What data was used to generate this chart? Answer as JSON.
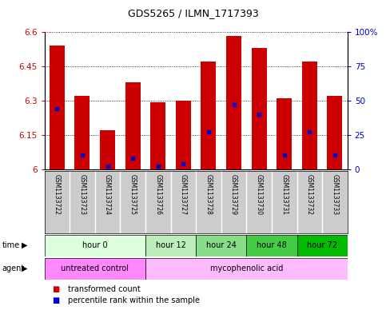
{
  "title": "GDS5265 / ILMN_1717393",
  "samples": [
    "GSM1133722",
    "GSM1133723",
    "GSM1133724",
    "GSM1133725",
    "GSM1133726",
    "GSM1133727",
    "GSM1133728",
    "GSM1133729",
    "GSM1133730",
    "GSM1133731",
    "GSM1133732",
    "GSM1133733"
  ],
  "transformed_counts": [
    6.54,
    6.32,
    6.17,
    6.38,
    6.29,
    6.3,
    6.47,
    6.58,
    6.53,
    6.31,
    6.47,
    6.32
  ],
  "percentile_ranks": [
    44,
    10,
    2,
    8,
    2,
    4,
    27,
    47,
    40,
    10,
    27,
    10
  ],
  "ymin": 6.0,
  "ymax": 6.6,
  "yticks": [
    6.0,
    6.15,
    6.3,
    6.45,
    6.6
  ],
  "ytick_labels": [
    "6",
    "6.15",
    "6.3",
    "6.45",
    "6.6"
  ],
  "right_yticks": [
    0,
    25,
    50,
    75,
    100
  ],
  "right_ytick_labels": [
    "0",
    "25",
    "50",
    "75",
    "100%"
  ],
  "time_groups": [
    {
      "label": "hour 0",
      "samples": [
        0,
        1,
        2,
        3
      ],
      "color": "#ddffdd"
    },
    {
      "label": "hour 12",
      "samples": [
        4,
        5
      ],
      "color": "#bbeebb"
    },
    {
      "label": "hour 24",
      "samples": [
        6,
        7
      ],
      "color": "#88dd88"
    },
    {
      "label": "hour 48",
      "samples": [
        8,
        9
      ],
      "color": "#44cc44"
    },
    {
      "label": "hour 72",
      "samples": [
        10,
        11
      ],
      "color": "#00bb00"
    }
  ],
  "agent_untreated_color": "#ff88ff",
  "agent_myco_color": "#ffaaff",
  "bar_color": "#cc0000",
  "dot_color": "#0000cc",
  "sample_bg": "#cccccc",
  "legend1_label": "transformed count",
  "legend2_label": "percentile rank within the sample",
  "left_axis_color": "#cc0000",
  "right_axis_color": "#0000cc"
}
